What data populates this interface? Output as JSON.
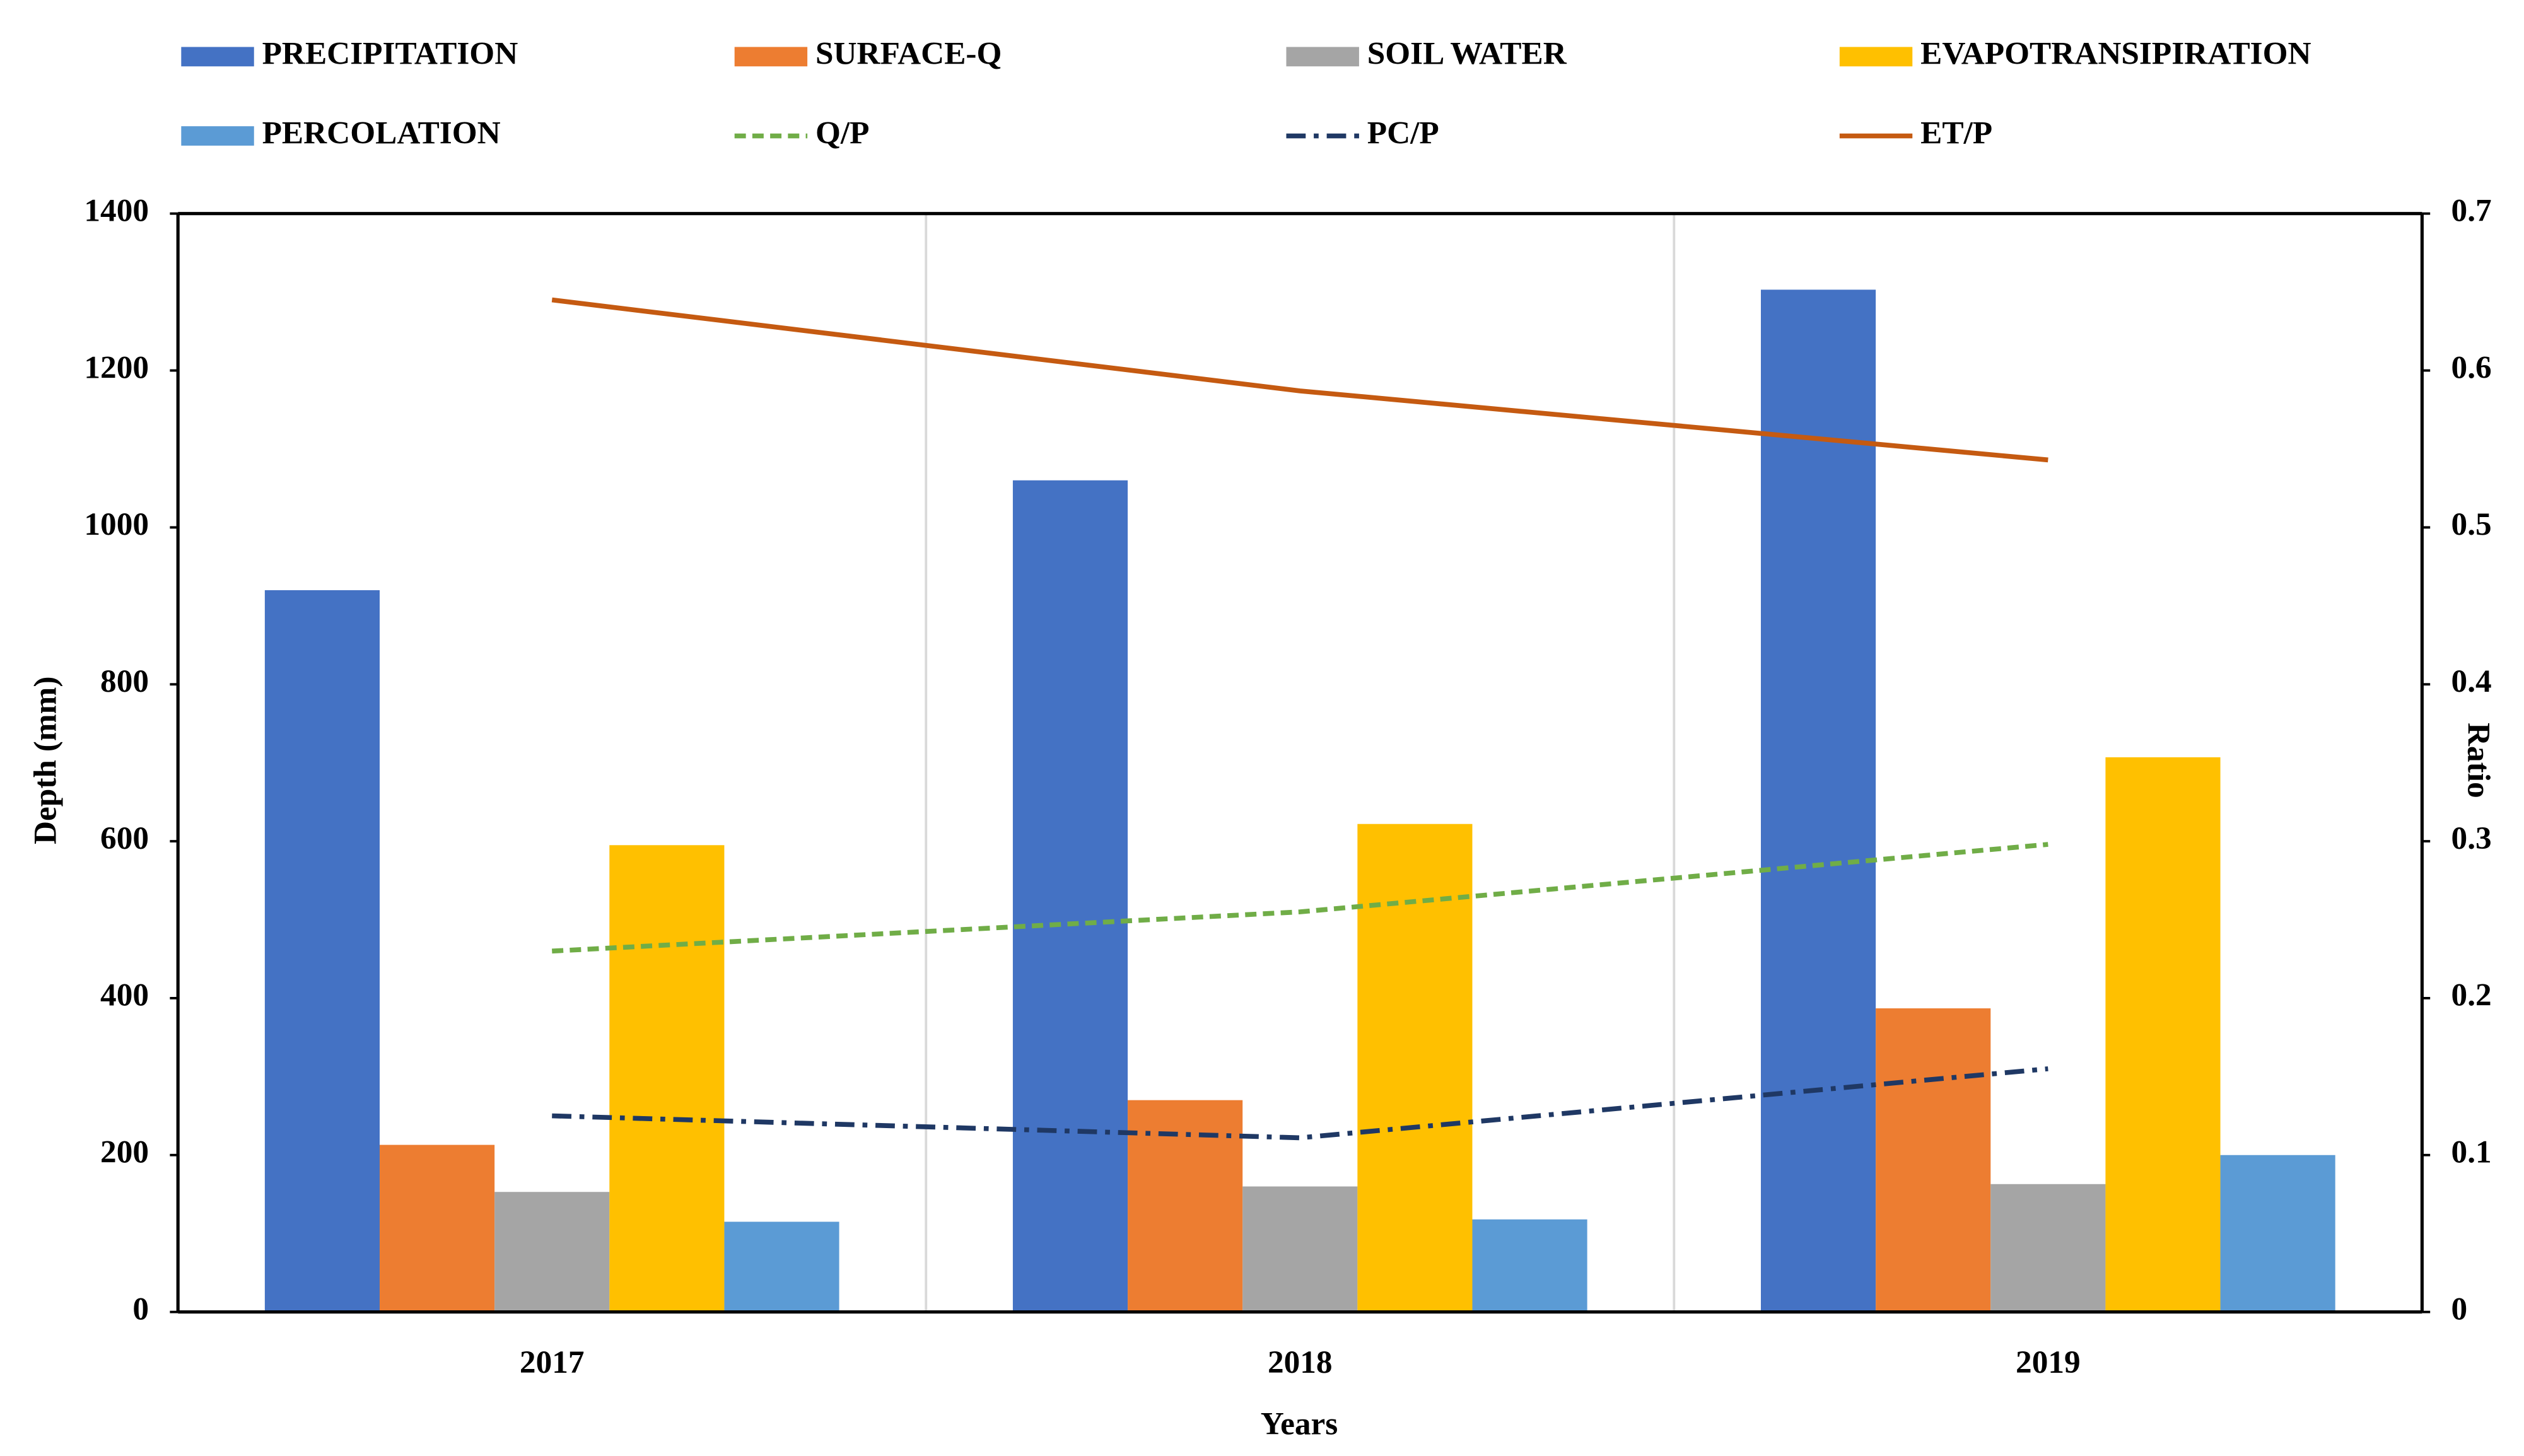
{
  "chart_data": {
    "type": "bar",
    "categories": [
      "2017",
      "2018",
      "2019"
    ],
    "xlabel": "Years",
    "ylabel": "Depth (mm)",
    "y2label": "Ratio",
    "ylim": [
      0,
      1400
    ],
    "yticks": [
      0,
      200,
      400,
      600,
      800,
      1000,
      1200,
      1400
    ],
    "y2lim": [
      0,
      0.7
    ],
    "y2ticks": [
      0,
      0.1,
      0.2,
      0.3,
      0.4,
      0.5,
      0.6,
      0.7
    ],
    "grid": true,
    "series": [
      {
        "name": "PRECIPITATION",
        "type": "bar",
        "color": "#4472c4",
        "values": [
          920,
          1060,
          1303
        ]
      },
      {
        "name": "SURFACE-Q",
        "type": "bar",
        "color": "#ed7d31",
        "values": [
          213,
          270,
          387
        ]
      },
      {
        "name": "SOIL WATER",
        "type": "bar",
        "color": "#a5a5a5",
        "values": [
          153,
          160,
          163
        ]
      },
      {
        "name": "EVAPOTRANSIPIRATION",
        "type": "bar",
        "color": "#ffc000",
        "values": [
          595,
          622,
          707
        ]
      },
      {
        "name": "PERCOLATION",
        "type": "bar",
        "color": "#5b9bd5",
        "values": [
          115,
          118,
          200
        ]
      },
      {
        "name": "Q/P",
        "type": "line",
        "axis": "y2",
        "dash": "dashed",
        "color": "#70ad47",
        "values": [
          0.23,
          0.255,
          0.298
        ]
      },
      {
        "name": "PC/P",
        "type": "line",
        "axis": "y2",
        "dash": "dashdot",
        "color": "#1f3864",
        "values": [
          0.125,
          0.111,
          0.155
        ]
      },
      {
        "name": "ET/P",
        "type": "line",
        "axis": "y2",
        "dash": "solid",
        "color": "#c55a11",
        "values": [
          0.645,
          0.587,
          0.543
        ]
      }
    ]
  }
}
